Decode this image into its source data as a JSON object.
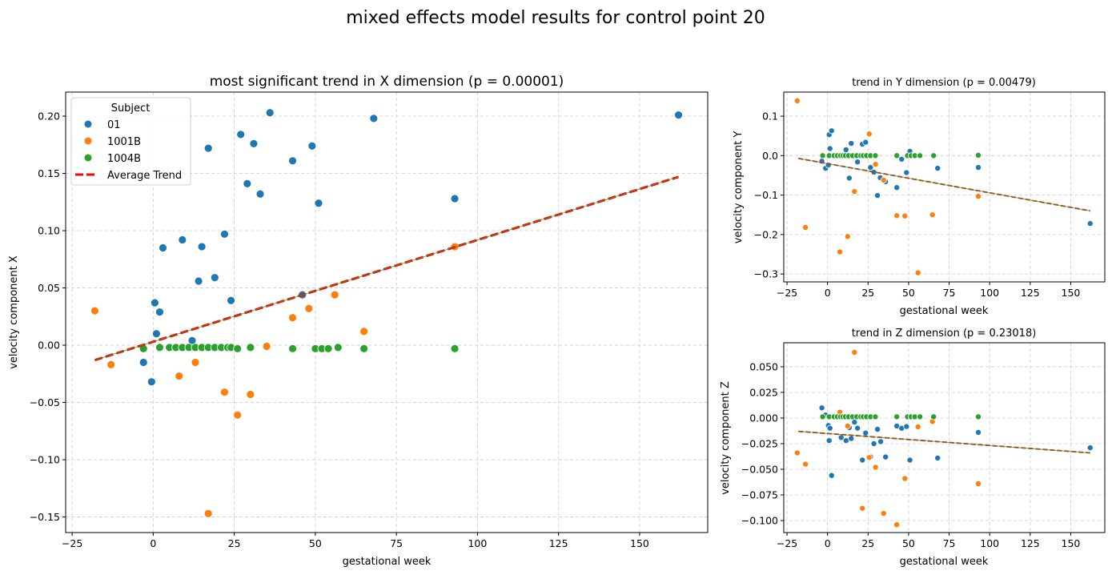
{
  "suptitle": "mixed effects model results for control point 20",
  "colors": {
    "01": "#1f77b4",
    "1001B": "#ff7f0e",
    "1004B": "#2ca02c",
    "trend": "#ff0000"
  },
  "chart_data": [
    {
      "type": "scatter",
      "title": "most significant trend in X dimension (p = 0.00001)",
      "xlabel": "gestational week",
      "ylabel": "velocity component X",
      "xlim": [
        -27,
        171
      ],
      "ylim": [
        -0.1636,
        0.221
      ],
      "grid": true,
      "xticks": [
        {
          "v": -25,
          "l": "−25"
        },
        {
          "v": 0,
          "l": "0"
        },
        {
          "v": 25,
          "l": "25"
        },
        {
          "v": 50,
          "l": "50"
        },
        {
          "v": 75,
          "l": "75"
        },
        {
          "v": 100,
          "l": "100"
        },
        {
          "v": 125,
          "l": "125"
        },
        {
          "v": 150,
          "l": "150"
        }
      ],
      "yticks": [
        {
          "v": -0.15,
          "l": "−0.15"
        },
        {
          "v": -0.1,
          "l": "−0.10"
        },
        {
          "v": -0.05,
          "l": "−0.05"
        },
        {
          "v": 0,
          "l": "0.00"
        },
        {
          "v": 0.05,
          "l": "0.05"
        },
        {
          "v": 0.1,
          "l": "0.10"
        },
        {
          "v": 0.15,
          "l": "0.15"
        },
        {
          "v": 0.2,
          "l": "0.20"
        }
      ],
      "legend": {
        "title": "Subject",
        "placement": "upper-left",
        "entries": [
          "01",
          "1001B",
          "1004B",
          "Average Trend"
        ]
      },
      "series": [
        {
          "name": "01",
          "points": [
            [
              -3,
              -0.015
            ],
            [
              -0.5,
              -0.032
            ],
            [
              0.5,
              0.037
            ],
            [
              1,
              0.01
            ],
            [
              2,
              0.029
            ],
            [
              3,
              0.085
            ],
            [
              9,
              0.092
            ],
            [
              12,
              0.004
            ],
            [
              14,
              0.056
            ],
            [
              15,
              0.086
            ],
            [
              17,
              0.172
            ],
            [
              19,
              0.059
            ],
            [
              22,
              0.097
            ],
            [
              24,
              0.039
            ],
            [
              27,
              0.184
            ],
            [
              29,
              0.141
            ],
            [
              31,
              0.176
            ],
            [
              33,
              0.132
            ],
            [
              36,
              0.203
            ],
            [
              43,
              0.161
            ],
            [
              46,
              0.044
            ],
            [
              49,
              0.174
            ],
            [
              51,
              0.124
            ],
            [
              68,
              0.198
            ],
            [
              93,
              0.128
            ],
            [
              162,
              0.201
            ]
          ]
        },
        {
          "name": "1001B",
          "points": [
            [
              -18,
              0.03
            ],
            [
              -13,
              -0.017
            ],
            [
              8,
              -0.027
            ],
            [
              13,
              -0.015
            ],
            [
              17,
              -0.147
            ],
            [
              22,
              -0.041
            ],
            [
              26,
              -0.061
            ],
            [
              30,
              -0.043
            ],
            [
              35,
              -0.001
            ],
            [
              43,
              0.024
            ],
            [
              48,
              0.032
            ],
            [
              56,
              0.044
            ],
            [
              65,
              0.012
            ],
            [
              93,
              0.086
            ]
          ]
        },
        {
          "name": "1004B",
          "points": [
            [
              -3,
              -0.003
            ],
            [
              2,
              -0.002
            ],
            [
              5,
              -0.002
            ],
            [
              7,
              -0.002
            ],
            [
              9,
              -0.002
            ],
            [
              11,
              -0.002
            ],
            [
              13,
              -0.002
            ],
            [
              15,
              -0.002
            ],
            [
              17,
              -0.002
            ],
            [
              19,
              -0.002
            ],
            [
              21,
              -0.002
            ],
            [
              23,
              -0.002
            ],
            [
              24,
              -0.002
            ],
            [
              26,
              -0.003
            ],
            [
              30,
              -0.002
            ],
            [
              43,
              -0.003
            ],
            [
              50,
              -0.003
            ],
            [
              52,
              -0.003
            ],
            [
              54,
              -0.003
            ],
            [
              57,
              -0.002
            ],
            [
              65,
              -0.003
            ],
            [
              93,
              -0.003
            ]
          ]
        }
      ],
      "trend": {
        "name": "Average Trend",
        "points": [
          [
            -18,
            -0.013
          ],
          [
            162,
            0.147
          ]
        ]
      }
    },
    {
      "type": "scatter",
      "title": "trend in Y dimension (p = 0.00479)",
      "xlabel": "gestational week",
      "ylabel": "velocity component Y",
      "xlim": [
        -27,
        171
      ],
      "ylim": [
        -0.32,
        0.161
      ],
      "grid": true,
      "xticks": [
        {
          "v": -25,
          "l": "−25"
        },
        {
          "v": 0,
          "l": "0"
        },
        {
          "v": 25,
          "l": "25"
        },
        {
          "v": 50,
          "l": "50"
        },
        {
          "v": 75,
          "l": "75"
        },
        {
          "v": 100,
          "l": "100"
        },
        {
          "v": 125,
          "l": "125"
        },
        {
          "v": 150,
          "l": "150"
        }
      ],
      "yticks": [
        {
          "v": -0.3,
          "l": "−0.3"
        },
        {
          "v": -0.2,
          "l": "−0.2"
        },
        {
          "v": -0.1,
          "l": "−0.1"
        },
        {
          "v": 0,
          "l": "0.0"
        },
        {
          "v": 0.1,
          "l": "0.1"
        }
      ],
      "series": [
        {
          "name": "01",
          "points": [
            [
              -3.5,
              -0.014
            ],
            [
              -1.2,
              -0.032
            ],
            [
              0.5,
              -0.024
            ],
            [
              1,
              0.053
            ],
            [
              1.5,
              0.018
            ],
            [
              2.5,
              0.063
            ],
            [
              11.4,
              0.015
            ],
            [
              13.4,
              -0.057
            ],
            [
              14.6,
              0.031
            ],
            [
              18.5,
              -0.016
            ],
            [
              21.5,
              0.029
            ],
            [
              23.5,
              0.034
            ],
            [
              26.5,
              -0.03
            ],
            [
              28.6,
              -0.042
            ],
            [
              30.8,
              -0.101
            ],
            [
              32.5,
              -0.056
            ],
            [
              35.8,
              -0.066
            ],
            [
              42.7,
              -0.081
            ],
            [
              45.7,
              -0.009
            ],
            [
              48.7,
              -0.043
            ],
            [
              50.8,
              0.011
            ],
            [
              67.9,
              -0.032
            ],
            [
              93,
              -0.03
            ],
            [
              162,
              -0.172
            ]
          ]
        },
        {
          "name": "1001B",
          "points": [
            [
              -18.7,
              0.139
            ],
            [
              -13.6,
              -0.182
            ],
            [
              7.6,
              -0.244
            ],
            [
              12.4,
              -0.205
            ],
            [
              16.6,
              -0.091
            ],
            [
              25.7,
              0.055
            ],
            [
              29.6,
              -0.022
            ],
            [
              34.6,
              -0.062
            ],
            [
              42.7,
              -0.152
            ],
            [
              47.7,
              -0.153
            ],
            [
              55.8,
              -0.297
            ],
            [
              64.7,
              -0.15
            ],
            [
              93,
              -0.103
            ]
          ]
        },
        {
          "name": "1004B",
          "points": [
            [
              -3,
              0
            ],
            [
              1,
              0
            ],
            [
              4,
              0
            ],
            [
              6,
              0
            ],
            [
              8,
              0
            ],
            [
              9.5,
              0
            ],
            [
              11,
              0
            ],
            [
              13,
              0
            ],
            [
              15.5,
              0
            ],
            [
              18,
              0
            ],
            [
              20.5,
              0
            ],
            [
              22,
              0
            ],
            [
              24,
              0
            ],
            [
              26.5,
              0
            ],
            [
              29.5,
              0
            ],
            [
              42.7,
              0
            ],
            [
              49.3,
              0
            ],
            [
              51.5,
              0
            ],
            [
              53.8,
              0
            ],
            [
              57,
              0
            ],
            [
              65.4,
              0
            ],
            [
              93,
              0.001
            ]
          ]
        }
      ],
      "trend": {
        "points": [
          [
            -18,
            -0.007
          ],
          [
            162,
            -0.14
          ]
        ]
      }
    },
    {
      "type": "scatter",
      "title": "trend in Z dimension (p = 0.23018)",
      "xlabel": "gestational week",
      "ylabel": "velocity component Z",
      "xlim": [
        -27,
        171
      ],
      "ylim": [
        -0.1117,
        0.0734
      ],
      "grid": true,
      "xticks": [
        {
          "v": -25,
          "l": "−25"
        },
        {
          "v": 0,
          "l": "0"
        },
        {
          "v": 25,
          "l": "25"
        },
        {
          "v": 50,
          "l": "50"
        },
        {
          "v": 75,
          "l": "75"
        },
        {
          "v": 100,
          "l": "100"
        },
        {
          "v": 125,
          "l": "125"
        },
        {
          "v": 150,
          "l": "150"
        }
      ],
      "yticks": [
        {
          "v": -0.1,
          "l": "−0.100"
        },
        {
          "v": -0.075,
          "l": "−0.075"
        },
        {
          "v": -0.05,
          "l": "−0.050"
        },
        {
          "v": -0.025,
          "l": "−0.025"
        },
        {
          "v": 0,
          "l": "0.000"
        },
        {
          "v": 0.025,
          "l": "0.025"
        },
        {
          "v": 0.05,
          "l": "0.050"
        }
      ],
      "series": [
        {
          "name": "01",
          "points": [
            [
              -3.5,
              0.0099
            ],
            [
              -1.2,
              0.003
            ],
            [
              0.5,
              -0.0073
            ],
            [
              1,
              -0.022
            ],
            [
              1.5,
              -0.0099
            ],
            [
              2.5,
              -0.056
            ],
            [
              8.4,
              -0.019
            ],
            [
              11.4,
              -0.022
            ],
            [
              13.4,
              -0.0094
            ],
            [
              14.6,
              -0.02
            ],
            [
              16.6,
              -0.004
            ],
            [
              18.5,
              -0.0099
            ],
            [
              21.5,
              -0.041
            ],
            [
              23.5,
              -0.0146
            ],
            [
              26.5,
              -0.038
            ],
            [
              28.6,
              -0.025
            ],
            [
              30.8,
              -0.011
            ],
            [
              32.8,
              -0.023
            ],
            [
              35.8,
              -0.038
            ],
            [
              42.7,
              -0.0078
            ],
            [
              45.7,
              -0.01
            ],
            [
              48.7,
              -0.0083
            ],
            [
              50.8,
              -0.041
            ],
            [
              67.9,
              -0.039
            ],
            [
              93,
              -0.014
            ],
            [
              162,
              -0.029
            ]
          ]
        },
        {
          "name": "1001B",
          "points": [
            [
              -18.7,
              -0.034
            ],
            [
              -13.6,
              -0.045
            ],
            [
              7.6,
              0.0057
            ],
            [
              12.4,
              -0.0078
            ],
            [
              16.6,
              0.064
            ],
            [
              21.5,
              -0.088
            ],
            [
              25.7,
              -0.0385
            ],
            [
              29.6,
              -0.048
            ],
            [
              34.6,
              -0.093
            ],
            [
              42.7,
              -0.104
            ],
            [
              47.7,
              -0.059
            ],
            [
              55.8,
              -0.0086
            ],
            [
              64.7,
              -0.0034
            ],
            [
              93,
              -0.064
            ]
          ]
        },
        {
          "name": "1004B",
          "points": [
            [
              -3,
              0.0012
            ],
            [
              1,
              0.0012
            ],
            [
              4,
              0.0012
            ],
            [
              6,
              0.0012
            ],
            [
              8,
              0.0012
            ],
            [
              9.5,
              0.0012
            ],
            [
              11,
              0.0012
            ],
            [
              13,
              0.0012
            ],
            [
              15.5,
              0.0012
            ],
            [
              18,
              0.0012
            ],
            [
              20.5,
              0.0012
            ],
            [
              22,
              0.0012
            ],
            [
              24,
              0.0012
            ],
            [
              26.5,
              0.0012
            ],
            [
              29.5,
              0.0012
            ],
            [
              42.7,
              0.0012
            ],
            [
              49.3,
              0.0012
            ],
            [
              51.5,
              0.0012
            ],
            [
              53.8,
              0.0012
            ],
            [
              57,
              0.0012
            ],
            [
              65.4,
              0.0012
            ],
            [
              93,
              0.0012
            ]
          ]
        }
      ],
      "trend": {
        "points": [
          [
            -18,
            -0.013
          ],
          [
            162,
            -0.034
          ]
        ]
      }
    }
  ]
}
